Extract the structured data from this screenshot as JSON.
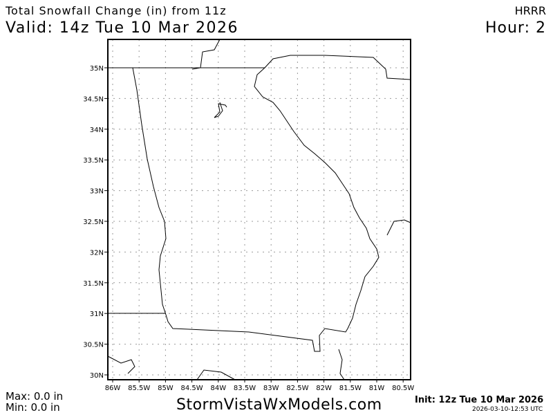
{
  "header": {
    "title": "Total Snowfall Change (in) from 11z",
    "valid": "Valid: 14z Tue 10 Mar 2026",
    "model": "HRRR",
    "hour": "Hour: 2"
  },
  "footer": {
    "max": "Max: 0.0 in",
    "min": "Min: 0.0 in",
    "brand": "StormVistaWxModels.com",
    "init": "Init: 12z Tue 10 Mar 2026",
    "timestamp": "2026-03-10-12:53 UTC"
  },
  "map": {
    "lon_labels": [
      "86W",
      "85.5W",
      "85W",
      "84.5W",
      "84W",
      "83.5W",
      "83W",
      "82.5W",
      "82W",
      "81.5W",
      "81W",
      "80.5W"
    ],
    "lat_labels": [
      "35N",
      "34.5N",
      "34N",
      "33.5N",
      "33N",
      "32.5N",
      "32N",
      "31.5N",
      "31N",
      "30.5N",
      "30N"
    ],
    "lon_range": [
      -86.0,
      -80.5
    ],
    "lat_range": [
      30.0,
      35.0
    ],
    "grid": "dotted",
    "line_color": "#000000",
    "grid_color": "#999999"
  }
}
